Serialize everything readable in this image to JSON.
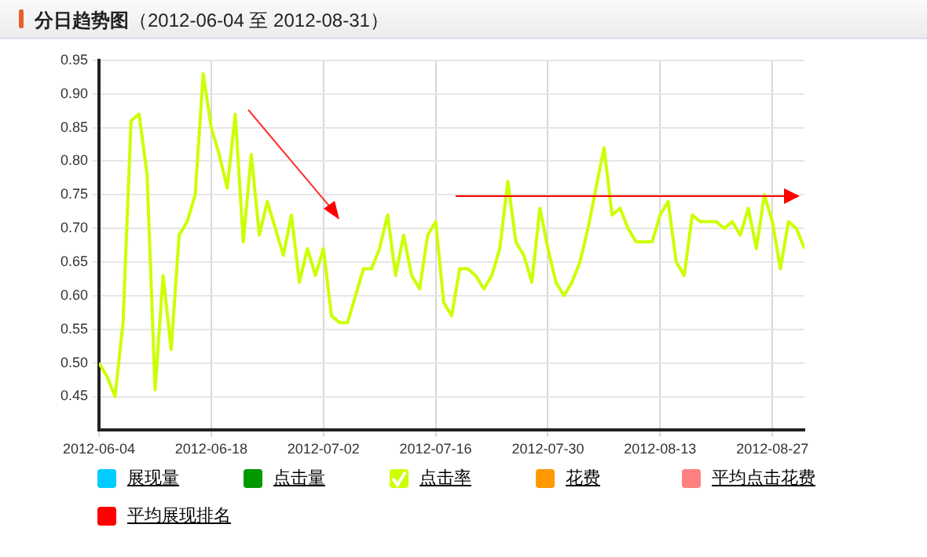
{
  "chart_data": {
    "type": "line",
    "title": "分日趋势图",
    "subtitle": "（2012-06-04 至 2012-08-31）",
    "x": [
      "2012-06-04",
      "2012-06-05",
      "2012-06-06",
      "2012-06-07",
      "2012-06-08",
      "2012-06-09",
      "2012-06-10",
      "2012-06-11",
      "2012-06-12",
      "2012-06-13",
      "2012-06-14",
      "2012-06-15",
      "2012-06-16",
      "2012-06-17",
      "2012-06-18",
      "2012-06-19",
      "2012-06-20",
      "2012-06-21",
      "2012-06-22",
      "2012-06-23",
      "2012-06-24",
      "2012-06-25",
      "2012-06-26",
      "2012-06-27",
      "2012-06-28",
      "2012-06-29",
      "2012-06-30",
      "2012-07-01",
      "2012-07-02",
      "2012-07-03",
      "2012-07-04",
      "2012-07-05",
      "2012-07-06",
      "2012-07-07",
      "2012-07-08",
      "2012-07-09",
      "2012-07-10",
      "2012-07-11",
      "2012-07-12",
      "2012-07-13",
      "2012-07-14",
      "2012-07-15",
      "2012-07-16",
      "2012-07-17",
      "2012-07-18",
      "2012-07-19",
      "2012-07-20",
      "2012-07-21",
      "2012-07-22",
      "2012-07-23",
      "2012-07-24",
      "2012-07-25",
      "2012-07-26",
      "2012-07-27",
      "2012-07-28",
      "2012-07-29",
      "2012-07-30",
      "2012-07-31",
      "2012-08-01",
      "2012-08-02",
      "2012-08-03",
      "2012-08-04",
      "2012-08-05",
      "2012-08-06",
      "2012-08-07",
      "2012-08-08",
      "2012-08-09",
      "2012-08-10",
      "2012-08-11",
      "2012-08-12",
      "2012-08-13",
      "2012-08-14",
      "2012-08-15",
      "2012-08-16",
      "2012-08-17",
      "2012-08-18",
      "2012-08-19",
      "2012-08-20",
      "2012-08-21",
      "2012-08-22",
      "2012-08-23",
      "2012-08-24",
      "2012-08-25",
      "2012-08-26",
      "2012-08-27",
      "2012-08-28",
      "2012-08-29",
      "2012-08-30",
      "2012-08-31"
    ],
    "series": [
      {
        "name": "展现量",
        "color": "#00ccff",
        "values": [
          null,
          null,
          null,
          null,
          null,
          null,
          null,
          null,
          null,
          null,
          null,
          null,
          null,
          null,
          null,
          null,
          null,
          null,
          null,
          null,
          null,
          null,
          null,
          null,
          null,
          null,
          null,
          null,
          null,
          null,
          null,
          null,
          null,
          null,
          null,
          null,
          null,
          null,
          null,
          null,
          null,
          null,
          null,
          null,
          null,
          null,
          null,
          null,
          null,
          null,
          null,
          null,
          null,
          null,
          null,
          null,
          null,
          null,
          null,
          null,
          null,
          null,
          null,
          null,
          null,
          null,
          null,
          null,
          null,
          null,
          null,
          null,
          null,
          null,
          null,
          null,
          null,
          null,
          null,
          null,
          null,
          null,
          null,
          null,
          null,
          null,
          null,
          null,
          null
        ]
      },
      {
        "name": "点击量",
        "color": "#009900",
        "values": [
          null,
          null,
          null,
          null,
          null,
          null,
          null,
          null,
          null,
          null,
          null,
          null,
          null,
          null,
          null,
          null,
          null,
          null,
          null,
          null,
          null,
          null,
          null,
          null,
          null,
          null,
          null,
          null,
          null,
          null,
          null,
          null,
          null,
          null,
          null,
          null,
          null,
          null,
          null,
          null,
          null,
          null,
          null,
          null,
          null,
          null,
          null,
          null,
          null,
          null,
          null,
          null,
          null,
          null,
          null,
          null,
          null,
          null,
          null,
          null,
          null,
          null,
          null,
          null,
          null,
          null,
          null,
          null,
          null,
          null,
          null,
          null,
          null,
          null,
          null,
          null,
          null,
          null,
          null,
          null,
          null,
          null,
          null,
          null,
          null,
          null,
          null,
          null,
          null
        ]
      },
      {
        "name": "点击率",
        "color": "#ccff00",
        "values": [
          0.5,
          0.48,
          0.45,
          0.56,
          0.86,
          0.87,
          0.78,
          0.46,
          0.63,
          0.52,
          0.69,
          0.71,
          0.75,
          0.93,
          0.85,
          0.81,
          0.76,
          0.87,
          0.68,
          0.81,
          0.69,
          0.74,
          0.7,
          0.66,
          0.72,
          0.62,
          0.67,
          0.63,
          0.67,
          0.57,
          0.56,
          0.56,
          0.6,
          0.64,
          0.64,
          0.67,
          0.72,
          0.63,
          0.69,
          0.63,
          0.61,
          0.69,
          0.71,
          0.59,
          0.57,
          0.64,
          0.64,
          0.63,
          0.61,
          0.63,
          0.67,
          0.77,
          0.68,
          0.66,
          0.62,
          0.73,
          0.67,
          0.62,
          0.6,
          0.62,
          0.65,
          0.7,
          0.76,
          0.82,
          0.72,
          0.73,
          0.7,
          0.68,
          0.68,
          0.68,
          0.72,
          0.74,
          0.65,
          0.63,
          0.72,
          0.71,
          0.71,
          0.71,
          0.7,
          0.71,
          0.69,
          0.73,
          0.67,
          0.75,
          0.71,
          0.64,
          0.71,
          0.7,
          0.67
        ]
      },
      {
        "name": "花费",
        "color": "#ff9900",
        "values": [
          null,
          null,
          null,
          null,
          null,
          null,
          null,
          null,
          null,
          null,
          null,
          null,
          null,
          null,
          null,
          null,
          null,
          null,
          null,
          null,
          null,
          null,
          null,
          null,
          null,
          null,
          null,
          null,
          null,
          null,
          null,
          null,
          null,
          null,
          null,
          null,
          null,
          null,
          null,
          null,
          null,
          null,
          null,
          null,
          null,
          null,
          null,
          null,
          null,
          null,
          null,
          null,
          null,
          null,
          null,
          null,
          null,
          null,
          null,
          null,
          null,
          null,
          null,
          null,
          null,
          null,
          null,
          null,
          null,
          null,
          null,
          null,
          null,
          null,
          null,
          null,
          null,
          null,
          null,
          null,
          null,
          null,
          null,
          null,
          null,
          null,
          null,
          null,
          null
        ]
      },
      {
        "name": "平均点击花费",
        "color": "#ff8080",
        "values": [
          null,
          null,
          null,
          null,
          null,
          null,
          null,
          null,
          null,
          null,
          null,
          null,
          null,
          null,
          null,
          null,
          null,
          null,
          null,
          null,
          null,
          null,
          null,
          null,
          null,
          null,
          null,
          null,
          null,
          null,
          null,
          null,
          null,
          null,
          null,
          null,
          null,
          null,
          null,
          null,
          null,
          null,
          null,
          null,
          null,
          null,
          null,
          null,
          null,
          null,
          null,
          null,
          null,
          null,
          null,
          null,
          null,
          null,
          null,
          null,
          null,
          null,
          null,
          null,
          null,
          null,
          null,
          null,
          null,
          null,
          null,
          null,
          null,
          null,
          null,
          null,
          null,
          null,
          null,
          null,
          null,
          null,
          null,
          null,
          null,
          null,
          null,
          null,
          null
        ]
      },
      {
        "name": "平均展现排名",
        "color": "#ff0000",
        "values": [
          null,
          null,
          null,
          null,
          null,
          null,
          null,
          null,
          null,
          null,
          null,
          null,
          null,
          null,
          null,
          null,
          null,
          null,
          null,
          null,
          null,
          null,
          null,
          null,
          null,
          null,
          null,
          null,
          null,
          null,
          null,
          null,
          null,
          null,
          null,
          null,
          null,
          null,
          null,
          null,
          null,
          null,
          null,
          null,
          null,
          null,
          null,
          null,
          null,
          null,
          null,
          null,
          null,
          null,
          null,
          null,
          null,
          null,
          null,
          null,
          null,
          null,
          null,
          null,
          null,
          null,
          null,
          null,
          null,
          null,
          null,
          null,
          null,
          null,
          null,
          null,
          null,
          null,
          null,
          null,
          null,
          null,
          null,
          null,
          null,
          null,
          null,
          null,
          null
        ]
      }
    ],
    "xlim": [
      "2012-06-04",
      "2012-08-31"
    ],
    "xticks": [
      "2012-06-04",
      "2012-06-18",
      "2012-07-02",
      "2012-07-16",
      "2012-07-30",
      "2012-08-13",
      "2012-08-27"
    ],
    "ylim": [
      0.4,
      0.95
    ],
    "yticks": [
      0.45,
      {
        "value": 0.5,
        "label": "0.50"
      },
      0.55,
      {
        "value": 0.6,
        "label": "0.60"
      },
      0.65,
      {
        "value": 0.7,
        "label": "0.70"
      },
      0.75,
      {
        "value": 0.8,
        "label": "0.80"
      },
      0.85,
      {
        "value": 0.9,
        "label": "0.90"
      },
      0.95
    ],
    "grid": true,
    "legend": "bottom",
    "marker": "none",
    "line_style": "solid"
  }
}
